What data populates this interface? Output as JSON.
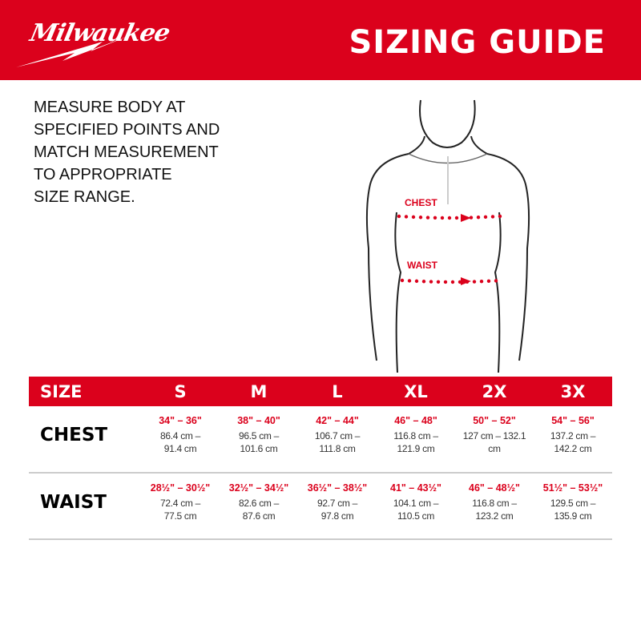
{
  "header": {
    "logo": "Milwaukee",
    "title": "SIZING GUIDE",
    "brand_color": "#db011c"
  },
  "intro": {
    "lines": [
      "MEASURE BODY AT",
      "SPECIFIED POINTS AND",
      "MATCH MEASUREMENT",
      "TO APPROPRIATE",
      "SIZE RANGE."
    ]
  },
  "figure": {
    "chest_label": "CHEST",
    "waist_label": "WAIST"
  },
  "table": {
    "headers": [
      "SIZE",
      "S",
      "M",
      "L",
      "XL",
      "2X",
      "3X"
    ],
    "rows": [
      {
        "label": "CHEST",
        "cells": [
          {
            "in": "34\" – 36\"",
            "cm1": "86.4 cm –",
            "cm2": "91.4 cm"
          },
          {
            "in": "38\" – 40\"",
            "cm1": "96.5 cm –",
            "cm2": "101.6 cm"
          },
          {
            "in": "42\" – 44\"",
            "cm1": "106.7 cm –",
            "cm2": "111.8 cm"
          },
          {
            "in": "46\" – 48\"",
            "cm1": "116.8 cm –",
            "cm2": "121.9 cm"
          },
          {
            "in": "50\" – 52\"",
            "cm1": "127 cm –  132.1",
            "cm2": "cm"
          },
          {
            "in": "54\" – 56\"",
            "cm1": "137.2 cm –",
            "cm2": "142.2 cm"
          }
        ]
      },
      {
        "label": "WAIST",
        "cells": [
          {
            "in": "28½\" – 30½\"",
            "cm1": "72.4 cm –",
            "cm2": "77.5 cm"
          },
          {
            "in": "32½\" – 34½\"",
            "cm1": "82.6 cm –",
            "cm2": "87.6 cm"
          },
          {
            "in": "36½\" – 38½\"",
            "cm1": "92.7 cm –",
            "cm2": "97.8 cm"
          },
          {
            "in": "41\" – 43½\"",
            "cm1": "104.1 cm –",
            "cm2": "110.5 cm"
          },
          {
            "in": "46\" – 48½\"",
            "cm1": "116.8 cm –",
            "cm2": "123.2 cm"
          },
          {
            "in": "51½\" – 53½\"",
            "cm1": "129.5 cm –",
            "cm2": "135.9 cm"
          }
        ]
      }
    ]
  }
}
